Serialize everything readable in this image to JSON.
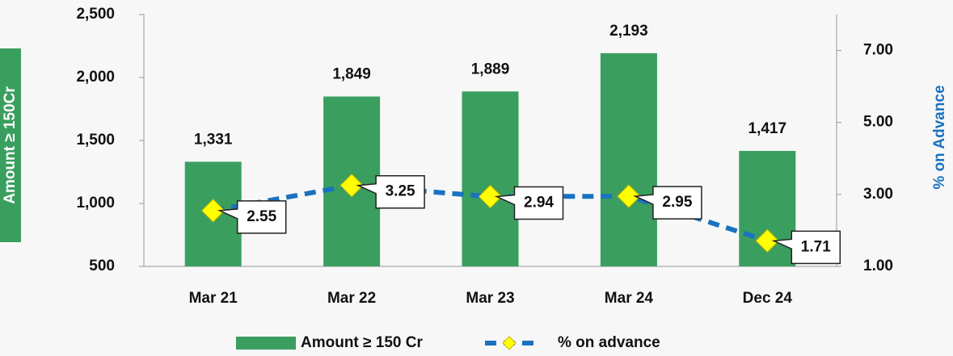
{
  "chart_data": {
    "type": "bar",
    "categories": [
      "Mar 21",
      "Mar 22",
      "Mar 23",
      "Mar 24",
      "Dec 24"
    ],
    "series": [
      {
        "name": "Amount ≥ 150 Cr",
        "type": "bar",
        "color": "#3a9e5f",
        "values": [
          1331,
          1849,
          1889,
          2193,
          1417
        ],
        "value_labels": [
          "1,331",
          "1,849",
          "1,889",
          "2,193",
          "1,417"
        ]
      },
      {
        "name": "% on advance",
        "type": "line",
        "axis": "y2",
        "color": "#1a72c0",
        "marker_color": "#ffff00",
        "values": [
          2.55,
          3.25,
          2.94,
          2.95,
          1.71
        ]
      }
    ],
    "y_label": "Amount ≥ 150Cr",
    "y2_label": "% on Advance",
    "ylim": [
      500,
      2500
    ],
    "yticks": [
      {
        "value": 500,
        "label": "500"
      },
      {
        "value": 1000,
        "label": "1,000"
      },
      {
        "value": 1500,
        "label": "1,500"
      },
      {
        "value": 2000,
        "label": "2,000"
      },
      {
        "value": 2500,
        "label": "2,500"
      }
    ],
    "y2lim": [
      1,
      8
    ],
    "y2ticks": [
      {
        "value": 1,
        "label": "1.00"
      },
      {
        "value": 3,
        "label": "3.00"
      },
      {
        "value": 5,
        "label": "5.00"
      },
      {
        "value": 7,
        "label": "7.00"
      }
    ],
    "legend": "bottom"
  }
}
